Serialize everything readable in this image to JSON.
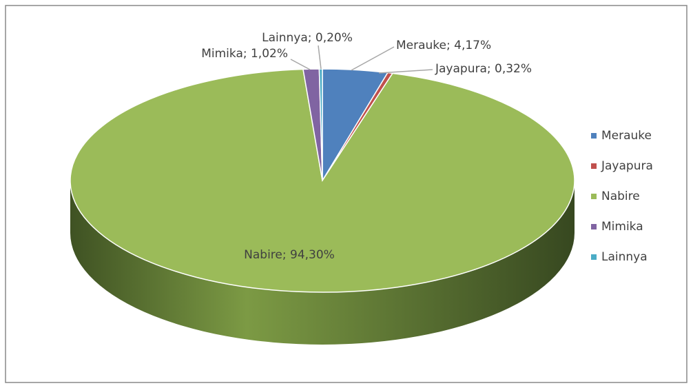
{
  "chart_data": {
    "type": "pie",
    "categories": [
      "Merauke",
      "Jayapura",
      "Nabire",
      "Mimika",
      "Lainnya"
    ],
    "values": [
      4.17,
      0.32,
      94.3,
      1.02,
      0.2
    ],
    "value_labels": [
      "Merauke; 4,17%",
      "Jayapura; 0,32%",
      "Nabire; 94,30%",
      "Mimika; 1,02%",
      "Lainnya; 0,20%"
    ],
    "colors": [
      "#4f81bd",
      "#c0504d",
      "#9bbb59",
      "#8064a2",
      "#4bacc6"
    ],
    "legend": "right"
  }
}
